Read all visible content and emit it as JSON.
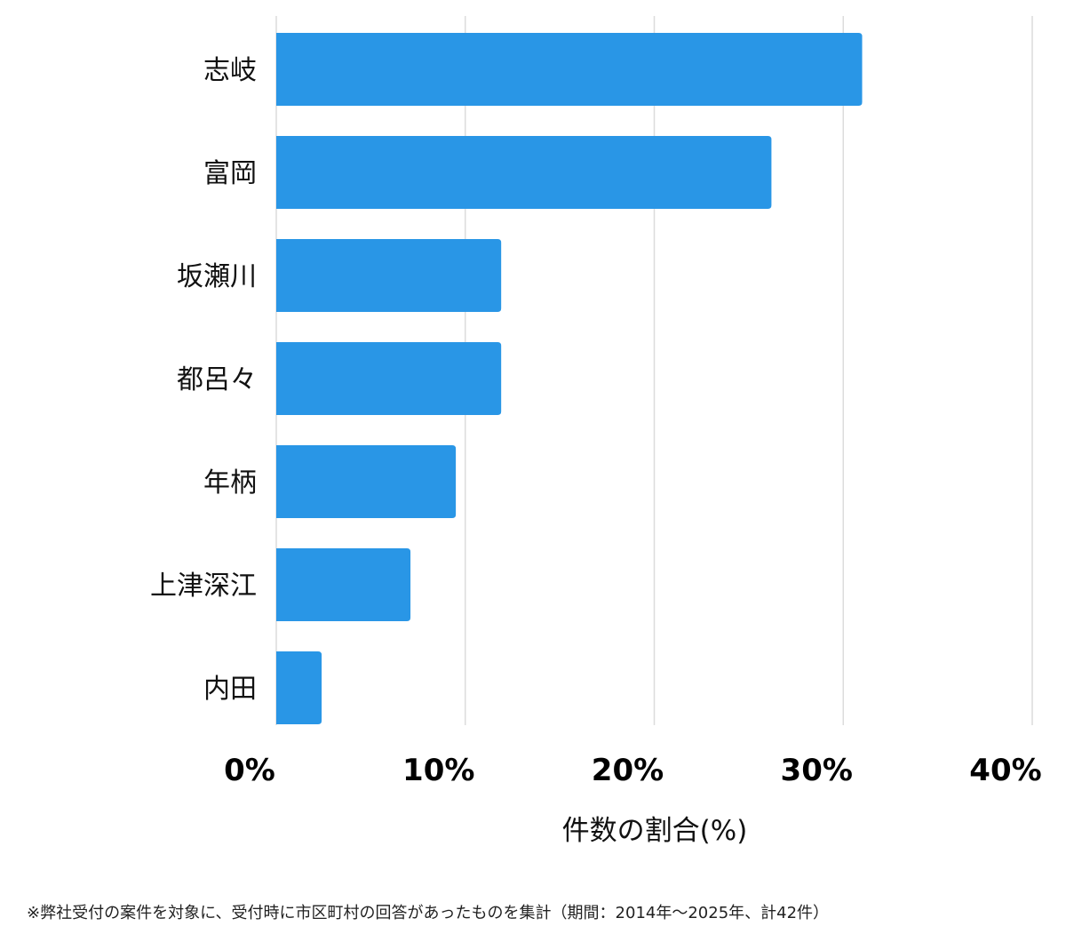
{
  "chart_data": {
    "type": "bar",
    "orientation": "horizontal",
    "categories": [
      "志岐",
      "富岡",
      "坂瀬川",
      "都呂々",
      "年柄",
      "上津深江",
      "内田"
    ],
    "values": [
      31,
      26.2,
      11.9,
      11.9,
      9.5,
      7.1,
      2.4
    ],
    "unit": "%",
    "xlim": [
      0,
      40
    ],
    "ticks": [
      0,
      10,
      20,
      30,
      40
    ],
    "tick_labels": [
      "0%",
      "10%",
      "20%",
      "30%",
      "40%"
    ],
    "xlabel": "件数の割合(%)",
    "ylabel": "",
    "title": "",
    "grid": "vertical",
    "bar_color": "#2996e6",
    "grid_color": "#dcdcdc"
  },
  "footnote": "※弊社受付の案件を対象に、受付時に市区町村の回答があったものを集計（期間：2014年～2025年、計42件）"
}
